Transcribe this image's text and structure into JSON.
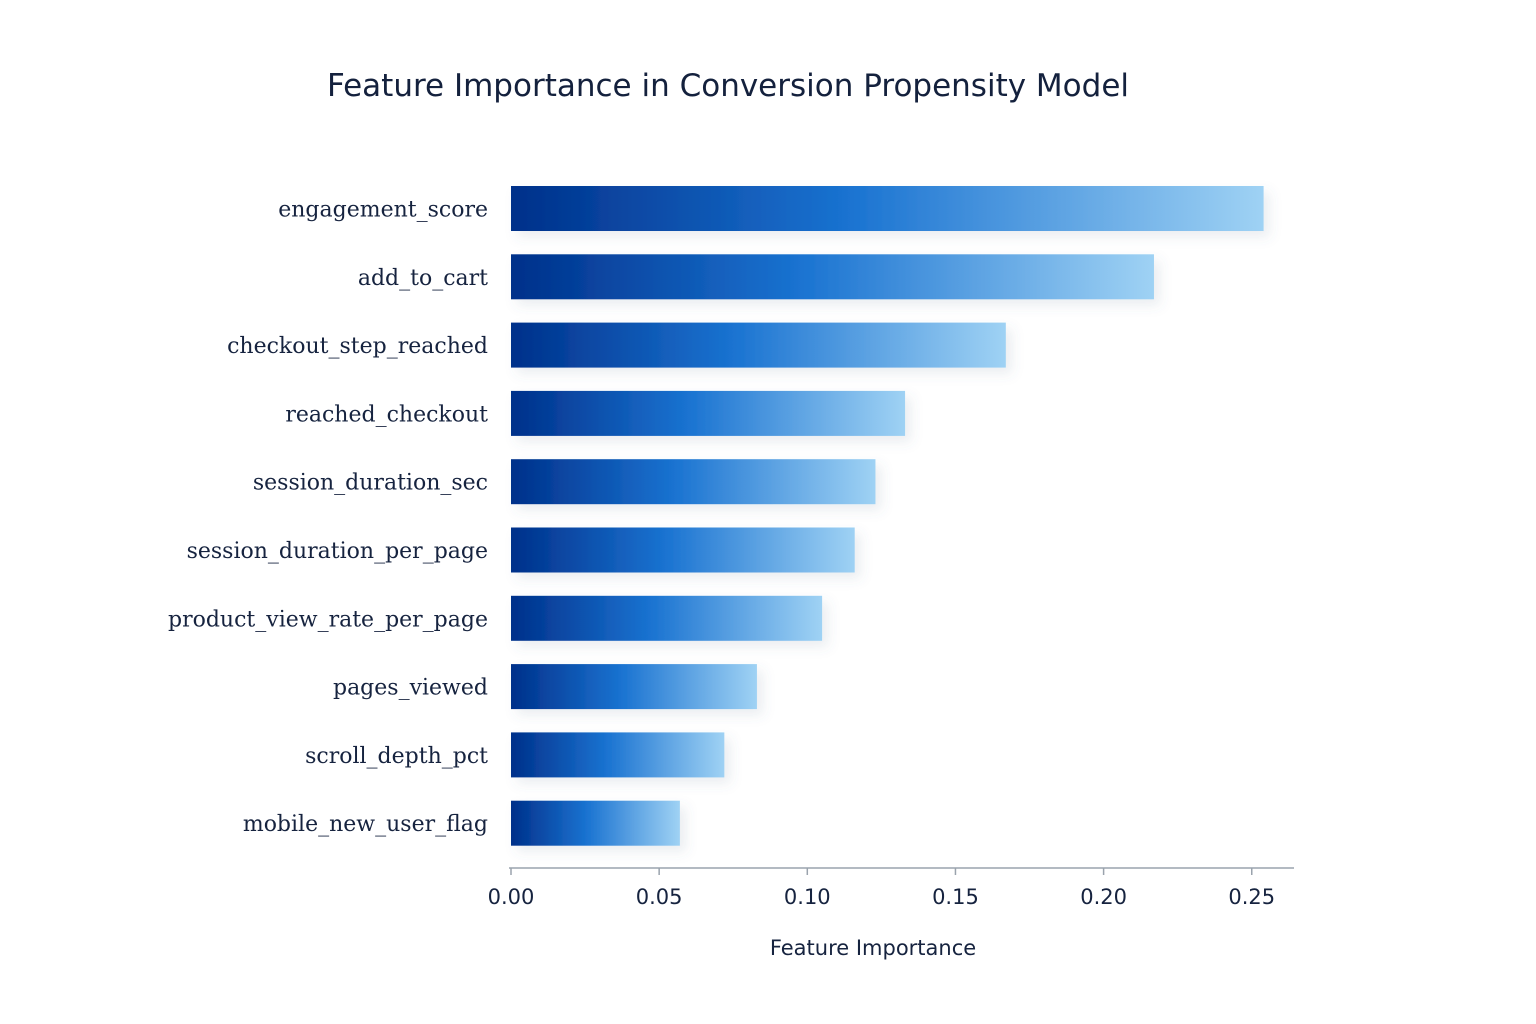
{
  "chart_data": {
    "type": "bar",
    "orientation": "horizontal",
    "title": "Feature Importance in Conversion Propensity Model",
    "xlabel": "Feature Importance",
    "ylabel": "",
    "categories": [
      "engagement_score",
      "add_to_cart",
      "checkout_step_reached",
      "reached_checkout",
      "session_duration_sec",
      "session_duration_per_page",
      "product_view_rate_per_page",
      "pages_viewed",
      "scroll_depth_pct",
      "mobile_new_user_flag"
    ],
    "values": [
      0.254,
      0.217,
      0.167,
      0.133,
      0.123,
      0.116,
      0.105,
      0.083,
      0.072,
      0.057
    ],
    "xlim": [
      0,
      0.265
    ],
    "xticks": [
      0.0,
      0.05,
      0.1,
      0.15,
      0.2,
      0.25
    ],
    "xtick_labels": [
      "0.00",
      "0.05",
      "0.10",
      "0.15",
      "0.20",
      "0.25"
    ],
    "grid": false,
    "legend": "none",
    "colors": {
      "bar_dark": "#00308a",
      "bar_mid": "#1a73d1",
      "bar_light": "#9fd2f4",
      "axis": "#9aa3ad",
      "text": "#16233f"
    }
  }
}
